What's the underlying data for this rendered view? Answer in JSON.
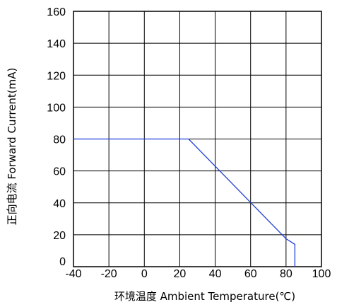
{
  "chart_data": {
    "type": "line",
    "title": "",
    "xlabel": "环境温度  Ambient Temperature(℃)",
    "ylabel": "正向电流 Forward Current(mA)",
    "xlim": [
      -40,
      100
    ],
    "ylim": [
      0,
      160
    ],
    "x_ticks": [
      -40,
      -20,
      0,
      20,
      40,
      60,
      80,
      100
    ],
    "y_ticks": [
      0,
      20,
      40,
      60,
      80,
      100,
      120,
      140,
      160
    ],
    "x_tick_labels": [
      "-40",
      "-20",
      "0",
      "20",
      "40",
      "60",
      "80",
      "100"
    ],
    "y_tick_labels": [
      "0",
      "20",
      "40",
      "60",
      "80",
      "100",
      "120",
      "140",
      "160"
    ],
    "grid": true,
    "legend": "none",
    "series": [
      {
        "color": "#1f3fd6",
        "x": [
          -40,
          25,
          80,
          85,
          85
        ],
        "y": [
          80,
          80,
          17.5,
          14,
          0
        ]
      }
    ]
  }
}
